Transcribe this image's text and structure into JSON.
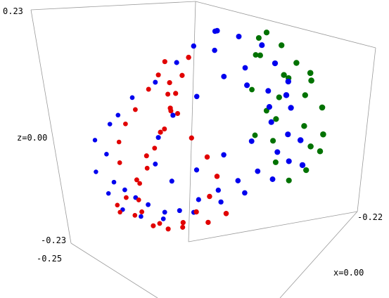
{
  "chart_data": {
    "type": "scatter",
    "title": "",
    "xlabel": "",
    "ylabel": "",
    "zlabel": "",
    "tick_labels": {
      "z_top": "0.23",
      "z_mid": "z=0.00",
      "z_bottom": "-0.23",
      "y_left": "-0.25",
      "x_right": "-0.22",
      "x_mid": "x=0.00"
    },
    "colors": {
      "red": "#e10000",
      "blue": "#0000ee",
      "green": "#007200",
      "edges": "#9a9a9a",
      "text": "#000000",
      "background": "#ffffff"
    },
    "series": [
      {
        "color_key": "blue",
        "points": [
          [
            0.04,
            -0.1,
            0.22
          ],
          [
            0.06,
            -0.02,
            0.2
          ],
          [
            0.1,
            0.02,
            0.18
          ],
          [
            0.12,
            0.05,
            0.14
          ],
          [
            0.14,
            0.08,
            0.1
          ],
          [
            0.13,
            0.12,
            0.04
          ],
          [
            0.11,
            0.15,
            -0.02
          ],
          [
            0.08,
            0.16,
            -0.06
          ],
          [
            0.04,
            0.14,
            -0.1
          ],
          [
            0.0,
            0.12,
            -0.12
          ],
          [
            -0.04,
            0.1,
            -0.14
          ],
          [
            -0.08,
            0.08,
            -0.16
          ],
          [
            -0.11,
            0.04,
            -0.18
          ],
          [
            -0.13,
            0.0,
            -0.18
          ],
          [
            -0.15,
            -0.05,
            -0.16
          ],
          [
            -0.16,
            -0.1,
            -0.14
          ],
          [
            -0.17,
            -0.14,
            -0.12
          ],
          [
            -0.18,
            -0.18,
            -0.1
          ],
          [
            -0.19,
            -0.2,
            -0.04
          ],
          [
            -0.19,
            -0.18,
            0.02
          ],
          [
            -0.16,
            -0.12,
            0.07
          ],
          [
            -0.12,
            -0.08,
            0.1
          ],
          [
            -0.08,
            -0.05,
            0.14
          ],
          [
            -0.03,
            -0.07,
            0.18
          ],
          [
            0.01,
            -0.04,
            0.21
          ],
          [
            0.16,
            0.02,
            0.08
          ],
          [
            0.17,
            0.08,
            -0.02
          ],
          [
            0.15,
            0.14,
            -0.08
          ],
          [
            0.1,
            0.18,
            -0.08
          ],
          [
            0.06,
            0.18,
            -0.12
          ],
          [
            0.0,
            0.16,
            -0.15
          ],
          [
            -0.05,
            0.14,
            -0.17
          ],
          [
            -0.1,
            0.1,
            -0.19
          ],
          [
            -0.15,
            0.04,
            -0.2
          ],
          [
            -0.18,
            -0.02,
            -0.19
          ],
          [
            -0.2,
            -0.08,
            -0.17
          ],
          [
            -0.21,
            -0.14,
            -0.13
          ],
          [
            -0.22,
            -0.19,
            -0.08
          ],
          [
            -0.21,
            -0.22,
            -0.01
          ],
          [
            -0.17,
            -0.18,
            0.04
          ],
          [
            -0.02,
            0.03,
            0.16
          ],
          [
            0.03,
            0.09,
            0.12
          ],
          [
            0.07,
            0.13,
            0.07
          ],
          [
            0.09,
            0.1,
            0.01
          ],
          [
            0.05,
            0.08,
            -0.03
          ],
          [
            -0.01,
            0.06,
            -0.06
          ],
          [
            -0.06,
            0.02,
            -0.09
          ],
          [
            -0.1,
            -0.03,
            -0.11
          ],
          [
            -0.12,
            -0.08,
            -0.07
          ],
          [
            -0.1,
            -0.11,
            -0.01
          ],
          [
            -0.06,
            -0.12,
            0.04
          ],
          [
            -0.01,
            -0.1,
            0.08
          ],
          [
            0.04,
            -0.06,
            0.12
          ],
          [
            0.08,
            -0.02,
            0.1
          ],
          [
            0.11,
            0.04,
            0.05
          ]
        ]
      },
      {
        "color_key": "green",
        "points": [
          [
            0.12,
            0.0,
            0.21
          ],
          [
            0.14,
            0.04,
            0.18
          ],
          [
            0.16,
            0.08,
            0.14
          ],
          [
            0.18,
            0.12,
            0.1
          ],
          [
            0.19,
            0.16,
            0.04
          ],
          [
            0.18,
            0.19,
            -0.02
          ],
          [
            0.16,
            0.22,
            -0.06
          ],
          [
            0.13,
            0.21,
            -0.1
          ],
          [
            0.1,
            0.18,
            -0.12
          ],
          [
            0.08,
            0.15,
            -0.08
          ],
          [
            0.09,
            0.11,
            -0.03
          ],
          [
            0.11,
            0.08,
            0.02
          ],
          [
            0.13,
            0.05,
            0.07
          ],
          [
            0.15,
            0.03,
            0.12
          ],
          [
            0.1,
            0.01,
            0.16
          ],
          [
            0.08,
            0.05,
            0.19
          ],
          [
            0.06,
            0.08,
            0.15
          ],
          [
            0.15,
            0.15,
            0.0
          ],
          [
            0.14,
            0.18,
            0.06
          ],
          [
            0.17,
            0.14,
            -0.04
          ],
          [
            0.12,
            0.13,
            0.1
          ],
          [
            0.07,
            0.12,
            0.03
          ],
          [
            0.05,
            0.1,
            -0.02
          ],
          [
            0.03,
            0.13,
            0.07
          ],
          [
            0.19,
            0.09,
            0.12
          ]
        ]
      },
      {
        "color_key": "red",
        "points": [
          [
            -0.03,
            -0.1,
            0.16
          ],
          [
            -0.05,
            -0.09,
            0.12
          ],
          [
            -0.07,
            -0.08,
            0.08
          ],
          [
            -0.09,
            -0.06,
            0.04
          ],
          [
            -0.11,
            -0.05,
            0.0
          ],
          [
            -0.13,
            -0.06,
            -0.04
          ],
          [
            -0.14,
            -0.08,
            -0.08
          ],
          [
            -0.15,
            -0.1,
            -0.11
          ],
          [
            -0.14,
            -0.13,
            -0.14
          ],
          [
            -0.12,
            -0.16,
            -0.16
          ],
          [
            -0.1,
            -0.14,
            -0.19
          ],
          [
            -0.08,
            -0.1,
            -0.2
          ],
          [
            -0.06,
            -0.06,
            -0.19
          ],
          [
            -0.04,
            -0.03,
            -0.17
          ],
          [
            -0.02,
            0.0,
            -0.14
          ],
          [
            -0.01,
            0.02,
            -0.1
          ],
          [
            -0.03,
            0.01,
            -0.06
          ],
          [
            -0.06,
            -0.01,
            -0.02
          ],
          [
            -0.09,
            -0.02,
            0.03
          ],
          [
            -0.11,
            -0.03,
            0.07
          ],
          [
            -0.17,
            -0.17,
            -0.06
          ],
          [
            -0.18,
            -0.15,
            -0.02
          ],
          [
            -0.16,
            -0.16,
            0.02
          ],
          [
            -0.14,
            -0.15,
            0.05
          ],
          [
            -0.12,
            -0.12,
            0.09
          ],
          [
            -0.1,
            -0.11,
            0.12
          ],
          [
            -0.08,
            -0.12,
            0.15
          ],
          [
            -0.06,
            -0.14,
            0.11
          ],
          [
            -0.05,
            -0.16,
            0.06
          ],
          [
            -0.07,
            -0.17,
            0.01
          ],
          [
            -0.1,
            -0.18,
            -0.04
          ],
          [
            -0.12,
            -0.19,
            -0.09
          ],
          [
            -0.15,
            -0.18,
            -0.13
          ],
          [
            -0.18,
            -0.16,
            -0.15
          ],
          [
            -0.19,
            -0.12,
            -0.17
          ],
          [
            -0.17,
            -0.08,
            -0.18
          ],
          [
            -0.13,
            -0.03,
            -0.2
          ],
          [
            -0.09,
            0.01,
            -0.21
          ],
          [
            -0.04,
            0.04,
            -0.2
          ],
          [
            0.0,
            0.05,
            -0.18
          ]
        ]
      }
    ],
    "axis_ranges": {
      "x": [
        -0.22,
        0.22
      ],
      "y": [
        -0.25,
        0.25
      ],
      "z": [
        -0.23,
        0.23
      ]
    },
    "grid": false,
    "legend": "none"
  }
}
